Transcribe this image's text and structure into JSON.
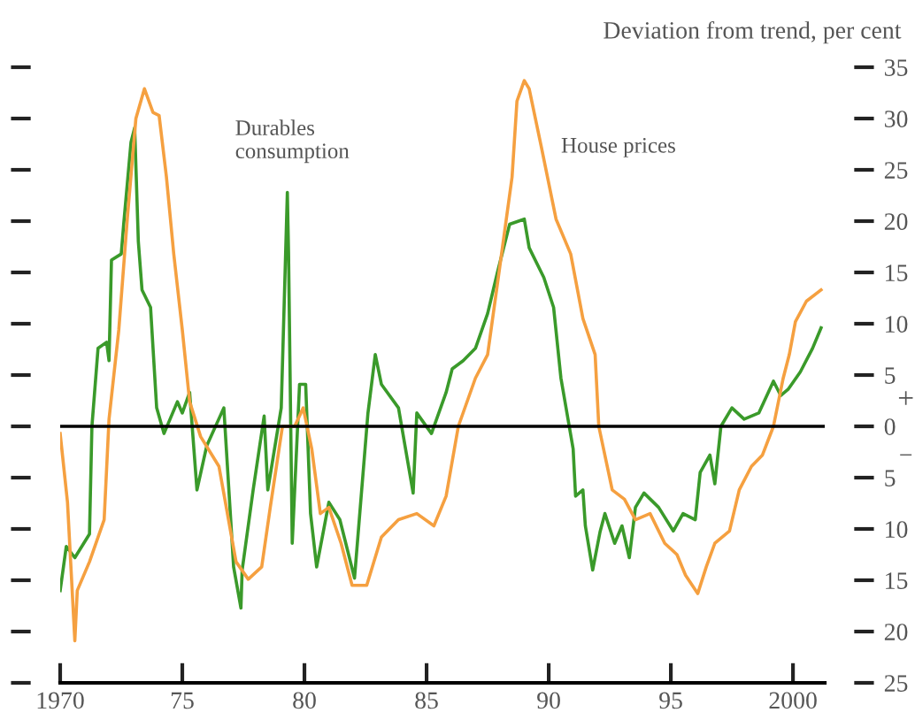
{
  "chart_data": {
    "type": "line",
    "ylabel": "Deviation from trend, per cent",
    "xlim": [
      1970,
      2001.3
    ],
    "ylim": [
      -25,
      35
    ],
    "xticks": [
      {
        "value": 1970,
        "label": "1970"
      },
      {
        "value": 1975,
        "label": "75"
      },
      {
        "value": 1980,
        "label": "80"
      },
      {
        "value": 1985,
        "label": "85"
      },
      {
        "value": 1990,
        "label": "90"
      },
      {
        "value": 1995,
        "label": "95"
      },
      {
        "value": 2000,
        "label": "2000"
      }
    ],
    "yticks": [
      {
        "value": -25,
        "label": "25"
      },
      {
        "value": -20,
        "label": "20"
      },
      {
        "value": -15,
        "label": "15"
      },
      {
        "value": -10,
        "label": "10"
      },
      {
        "value": -5,
        "label": "5"
      },
      0,
      5,
      10,
      15,
      20,
      25,
      30,
      35
    ],
    "grid": false,
    "legend": false,
    "line_style": "solid",
    "marker": "none",
    "ref_lines": [
      {
        "axis": "y",
        "value": 0,
        "color": "#000000"
      }
    ],
    "annotations": [
      {
        "text": "Durables\nconsumption",
        "x": 1979.3,
        "y": 22.8
      },
      {
        "text": "House prices",
        "x": 1989.7,
        "y": 27.2
      },
      "+",
      "−"
    ],
    "series": [
      {
        "color": "#3a9a2a",
        "x": [
          1970.0,
          1970.25,
          1970.6,
          1971.2,
          1971.3,
          1971.55,
          1971.9,
          1972.0,
          1972.1,
          1972.5,
          1972.6,
          1972.9,
          1973.05,
          1973.2,
          1973.35,
          1973.7,
          1973.95,
          1974.25,
          1974.8,
          1975.0,
          1975.3,
          1975.6,
          1976.0,
          1976.7,
          1977.1,
          1977.4,
          1977.45,
          1977.9,
          1978.35,
          1978.5,
          1979.05,
          1979.3,
          1979.35,
          1979.5,
          1979.8,
          1980.05,
          1980.25,
          1980.5,
          1981.0,
          1981.45,
          1982.05,
          1982.6,
          1982.9,
          1983.15,
          1983.85,
          1984.45,
          1984.6,
          1985.2,
          1985.8,
          1986.05,
          1986.5,
          1987.0,
          1987.5,
          1987.9,
          1988.4,
          1989.0,
          1989.2,
          1989.8,
          1990.2,
          1990.5,
          1991.0,
          1991.1,
          1991.4,
          1991.5,
          1991.8,
          1992.1,
          1992.3,
          1992.7,
          1993.0,
          1993.3,
          1993.55,
          1993.9,
          1994.5,
          1995.1,
          1995.5,
          1996.0,
          1996.2,
          1996.6,
          1996.8,
          1997.05,
          1997.5,
          1998.0,
          1998.6,
          1999.2,
          1999.5,
          1999.8,
          2000.3,
          2000.8,
          2001.15
        ],
        "values": [
          -16,
          -11.7,
          -12.8,
          -10.5,
          0,
          7.6,
          8.2,
          6.4,
          16.2,
          16.8,
          19.7,
          27.7,
          29.1,
          18,
          13.3,
          11.6,
          1.8,
          -0.7,
          2.4,
          1.3,
          3.3,
          -6.2,
          -1.9,
          1.8,
          -13.7,
          -17.7,
          -14,
          -6.2,
          1,
          -6.2,
          1.8,
          22.8,
          16.8,
          -11.4,
          4.1,
          4.1,
          -8.5,
          -13.7,
          -7.4,
          -9.1,
          -14.8,
          1.3,
          7,
          4.1,
          1.8,
          -6.5,
          1.3,
          -0.7,
          3.3,
          5.6,
          6.4,
          7.6,
          11,
          15,
          19.7,
          20.2,
          17.4,
          14.5,
          11.6,
          4.7,
          -2.2,
          -6.8,
          -6.2,
          -9.7,
          -14,
          -10.3,
          -8.5,
          -11.4,
          -9.7,
          -12.8,
          -7.9,
          -6.5,
          -7.9,
          -10.2,
          -8.5,
          -9.1,
          -4.5,
          -2.8,
          -5.6,
          0,
          1.8,
          0.7,
          1.3,
          4.4,
          3,
          3.6,
          5.3,
          7.6,
          9.6
        ]
      },
      {
        "color": "#f5a040",
        "x": [
          1970.0,
          1970.3,
          1970.6,
          1970.7,
          1971.2,
          1971.8,
          1972.0,
          1972.4,
          1972.75,
          1973.1,
          1973.45,
          1973.8,
          1974.05,
          1974.35,
          1974.65,
          1975.0,
          1975.3,
          1975.75,
          1976.5,
          1977.2,
          1977.7,
          1978.25,
          1978.6,
          1979.1,
          1979.6,
          1979.95,
          1980.3,
          1980.65,
          1981.0,
          1981.5,
          1981.95,
          1982.55,
          1983.15,
          1983.85,
          1984.6,
          1985.3,
          1985.8,
          1986.3,
          1987.0,
          1987.5,
          1988.0,
          1988.5,
          1988.7,
          1989.0,
          1989.2,
          1989.7,
          1990.3,
          1990.9,
          1991.4,
          1991.9,
          1992.05,
          1992.6,
          1993.1,
          1993.55,
          1994.15,
          1994.75,
          1995.25,
          1995.6,
          1996.1,
          1996.45,
          1996.8,
          1997.4,
          1997.8,
          1998.3,
          1998.75,
          1999.2,
          1999.6,
          1999.85,
          2000.1,
          2000.55,
          2001.15
        ],
        "values": [
          -0.7,
          -7.4,
          -20.9,
          -16,
          -13.2,
          -9.1,
          0.7,
          9.4,
          20.3,
          30,
          32.9,
          30.6,
          30.3,
          24.3,
          16.8,
          9.4,
          2.4,
          -1,
          -3.9,
          -13.2,
          -14.9,
          -13.7,
          -7.9,
          0,
          0,
          1.8,
          -2.2,
          -8.5,
          -7.9,
          -11.4,
          -15.5,
          -15.5,
          -10.8,
          -9.1,
          -8.5,
          -9.7,
          -6.8,
          0,
          4.7,
          7,
          15.6,
          24.3,
          31.7,
          33.7,
          32.9,
          27.2,
          20.2,
          16.8,
          10.5,
          7,
          0,
          -6.2,
          -7.1,
          -9.1,
          -8.5,
          -11.4,
          -12.5,
          -14.5,
          -16.3,
          -13.7,
          -11.4,
          -10.2,
          -6.2,
          -3.9,
          -2.8,
          0,
          4.7,
          7,
          10.2,
          12.2,
          13.3
        ]
      }
    ]
  }
}
